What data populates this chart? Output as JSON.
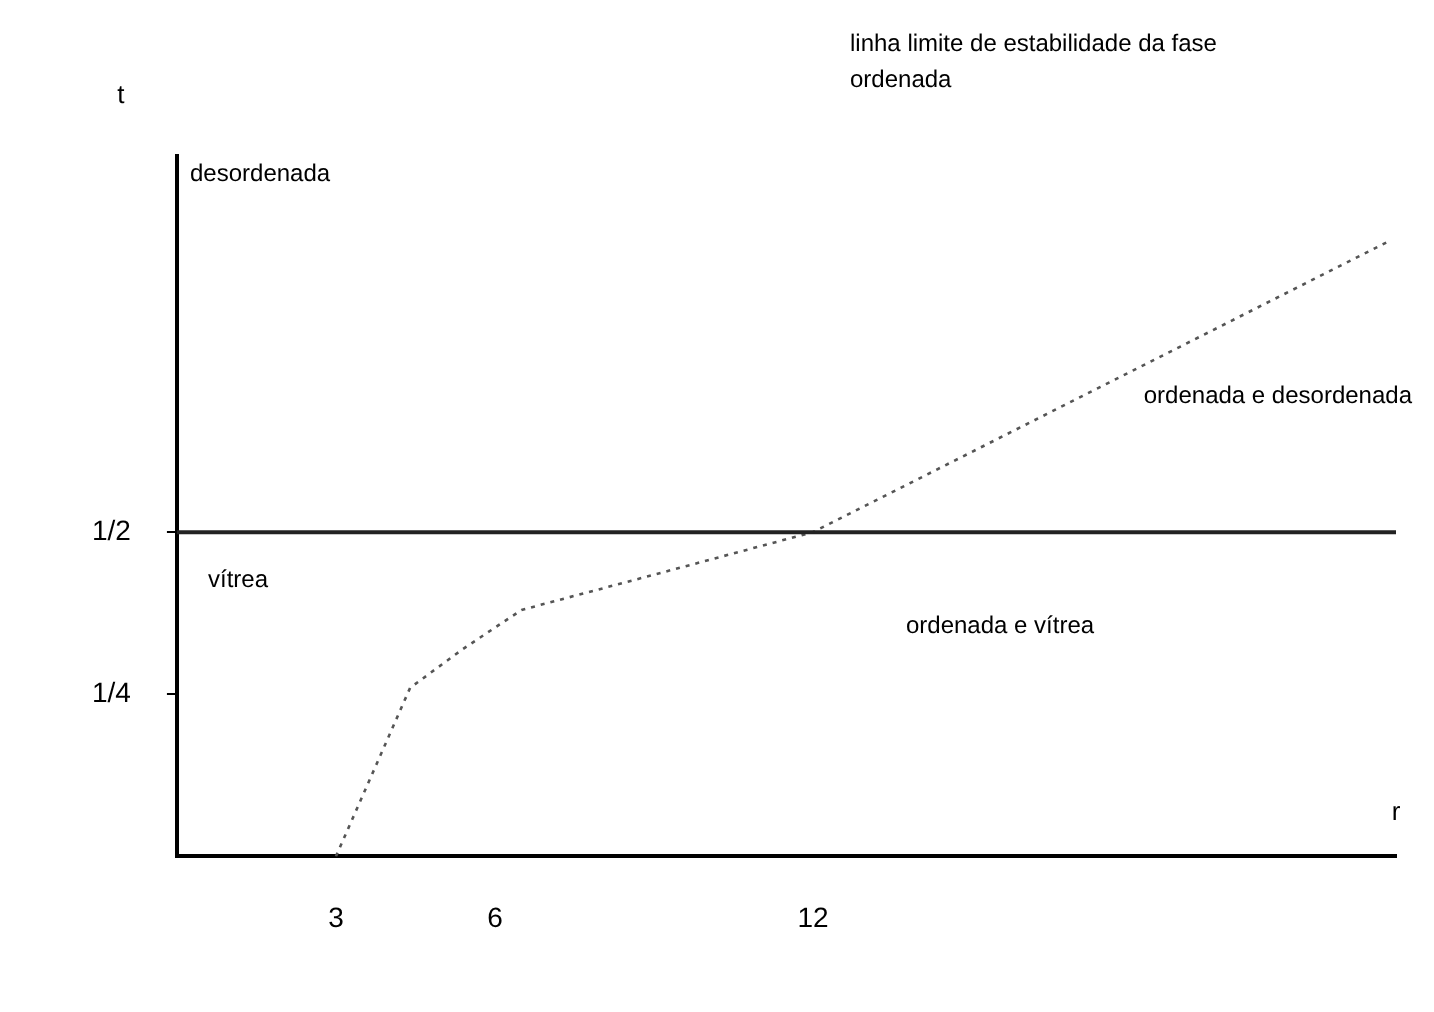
{
  "chart_data": {
    "type": "line",
    "xlabel": "r",
    "ylabel": "t",
    "x": [
      3,
      4.4,
      5.4,
      6.5,
      8.8,
      12,
      22.9
    ],
    "series": [
      {
        "color": "#555555",
        "values": [
          0,
          0.26,
          0.32,
          0.38,
          0.43,
          0.5,
          0.95
        ],
        "line_style": "dotted"
      }
    ],
    "xlim": [
      0,
      23
    ],
    "ylim": [
      0,
      1.08
    ],
    "xticks": [
      3,
      6,
      12
    ],
    "yticks": [
      {
        "value": 0.25,
        "label": "1/4"
      },
      {
        "value": 0.5,
        "label": "1/2"
      }
    ],
    "grid": false,
    "legend": false,
    "marker": "none",
    "ref_lines": [
      {
        "axis": "y",
        "value": 0.5,
        "color": "#222222"
      }
    ],
    "annotations": [
      "linha limite de estabilidade da fase ordenada",
      "desordenada",
      "vítrea",
      "ordenada e desordenada",
      "ordenada e vítrea"
    ]
  }
}
